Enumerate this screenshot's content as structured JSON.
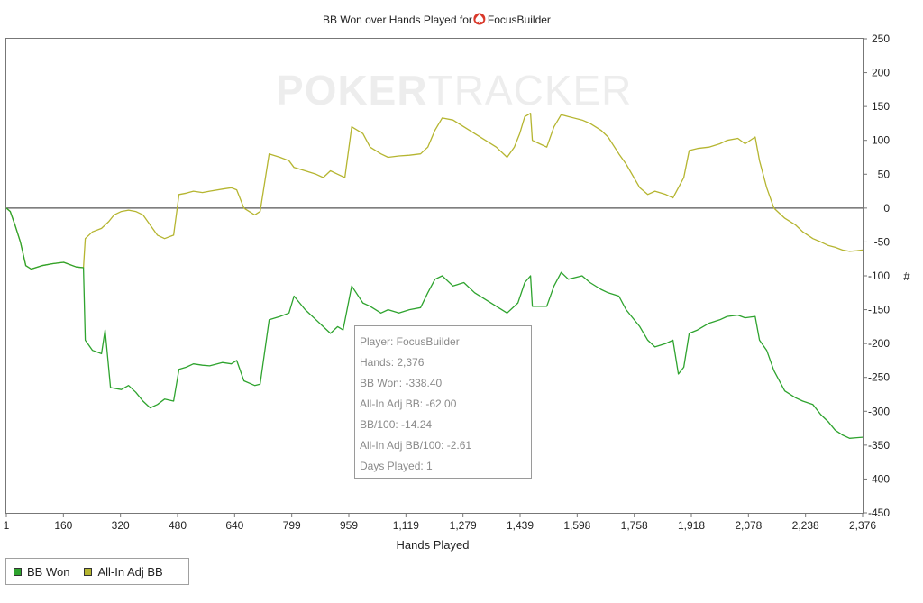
{
  "chart_data": {
    "type": "line",
    "title": "BB Won over Hands Played for",
    "player": "FocusBuilder",
    "xlabel": "Hands Played",
    "ylabel": "#",
    "xlim": [
      1,
      2376
    ],
    "ylim": [
      -450,
      250
    ],
    "x_ticks": [
      "1",
      "160",
      "320",
      "480",
      "640",
      "799",
      "959",
      "1,119",
      "1,279",
      "1,439",
      "1,598",
      "1,758",
      "1,918",
      "2,078",
      "2,238",
      "2,376"
    ],
    "y_ticks": [
      250,
      200,
      150,
      100,
      50,
      0,
      -50,
      -100,
      -150,
      -200,
      -250,
      -300,
      -350,
      -400,
      -450
    ],
    "grid": false,
    "legend_position": "bottom-left",
    "series": [
      {
        "name": "BB Won",
        "color": "#2ea32e",
        "points": [
          [
            1,
            0
          ],
          [
            12,
            -5
          ],
          [
            25,
            -25
          ],
          [
            40,
            -50
          ],
          [
            55,
            -85
          ],
          [
            70,
            -90
          ],
          [
            100,
            -85
          ],
          [
            130,
            -82
          ],
          [
            160,
            -80
          ],
          [
            195,
            -87
          ],
          [
            215,
            -88
          ],
          [
            220,
            -195
          ],
          [
            240,
            -210
          ],
          [
            265,
            -215
          ],
          [
            275,
            -180
          ],
          [
            290,
            -265
          ],
          [
            320,
            -268
          ],
          [
            340,
            -262
          ],
          [
            360,
            -272
          ],
          [
            380,
            -285
          ],
          [
            400,
            -295
          ],
          [
            420,
            -290
          ],
          [
            440,
            -282
          ],
          [
            465,
            -285
          ],
          [
            480,
            -238
          ],
          [
            500,
            -235
          ],
          [
            520,
            -230
          ],
          [
            545,
            -232
          ],
          [
            565,
            -233
          ],
          [
            600,
            -228
          ],
          [
            625,
            -230
          ],
          [
            640,
            -225
          ],
          [
            660,
            -255
          ],
          [
            690,
            -262
          ],
          [
            705,
            -260
          ],
          [
            730,
            -165
          ],
          [
            760,
            -160
          ],
          [
            785,
            -155
          ],
          [
            799,
            -130
          ],
          [
            830,
            -150
          ],
          [
            860,
            -165
          ],
          [
            880,
            -175
          ],
          [
            900,
            -185
          ],
          [
            920,
            -175
          ],
          [
            935,
            -180
          ],
          [
            959,
            -115
          ],
          [
            990,
            -140
          ],
          [
            1010,
            -145
          ],
          [
            1040,
            -155
          ],
          [
            1060,
            -150
          ],
          [
            1090,
            -155
          ],
          [
            1119,
            -150
          ],
          [
            1150,
            -147
          ],
          [
            1170,
            -125
          ],
          [
            1190,
            -105
          ],
          [
            1210,
            -100
          ],
          [
            1240,
            -115
          ],
          [
            1270,
            -110
          ],
          [
            1300,
            -125
          ],
          [
            1330,
            -135
          ],
          [
            1360,
            -145
          ],
          [
            1390,
            -155
          ],
          [
            1420,
            -140
          ],
          [
            1439,
            -110
          ],
          [
            1455,
            -100
          ],
          [
            1460,
            -145
          ],
          [
            1480,
            -145
          ],
          [
            1500,
            -145
          ],
          [
            1520,
            -115
          ],
          [
            1540,
            -95
          ],
          [
            1560,
            -105
          ],
          [
            1598,
            -100
          ],
          [
            1620,
            -110
          ],
          [
            1650,
            -120
          ],
          [
            1670,
            -125
          ],
          [
            1700,
            -130
          ],
          [
            1720,
            -150
          ],
          [
            1758,
            -175
          ],
          [
            1780,
            -195
          ],
          [
            1800,
            -205
          ],
          [
            1830,
            -200
          ],
          [
            1850,
            -195
          ],
          [
            1865,
            -245
          ],
          [
            1880,
            -235
          ],
          [
            1895,
            -185
          ],
          [
            1918,
            -180
          ],
          [
            1950,
            -170
          ],
          [
            1980,
            -165
          ],
          [
            2000,
            -160
          ],
          [
            2030,
            -158
          ],
          [
            2050,
            -162
          ],
          [
            2078,
            -160
          ],
          [
            2090,
            -195
          ],
          [
            2110,
            -210
          ],
          [
            2130,
            -240
          ],
          [
            2160,
            -270
          ],
          [
            2190,
            -280
          ],
          [
            2210,
            -285
          ],
          [
            2238,
            -290
          ],
          [
            2260,
            -305
          ],
          [
            2280,
            -315
          ],
          [
            2300,
            -328
          ],
          [
            2320,
            -335
          ],
          [
            2340,
            -340
          ],
          [
            2360,
            -339
          ],
          [
            2376,
            -338.4
          ]
        ]
      },
      {
        "name": "All-In Adj BB",
        "color": "#b5b530",
        "points": [
          [
            1,
            0
          ],
          [
            12,
            -5
          ],
          [
            25,
            -25
          ],
          [
            40,
            -50
          ],
          [
            55,
            -85
          ],
          [
            70,
            -90
          ],
          [
            100,
            -85
          ],
          [
            130,
            -82
          ],
          [
            160,
            -80
          ],
          [
            195,
            -87
          ],
          [
            215,
            -88
          ],
          [
            220,
            -45
          ],
          [
            240,
            -35
          ],
          [
            265,
            -30
          ],
          [
            285,
            -20
          ],
          [
            300,
            -10
          ],
          [
            320,
            -5
          ],
          [
            340,
            -3
          ],
          [
            360,
            -5
          ],
          [
            380,
            -10
          ],
          [
            400,
            -25
          ],
          [
            420,
            -40
          ],
          [
            440,
            -45
          ],
          [
            465,
            -40
          ],
          [
            480,
            20
          ],
          [
            500,
            22
          ],
          [
            520,
            25
          ],
          [
            545,
            23
          ],
          [
            565,
            25
          ],
          [
            600,
            28
          ],
          [
            625,
            30
          ],
          [
            640,
            27
          ],
          [
            660,
            0
          ],
          [
            690,
            -10
          ],
          [
            705,
            -5
          ],
          [
            730,
            80
          ],
          [
            760,
            75
          ],
          [
            785,
            70
          ],
          [
            799,
            60
          ],
          [
            830,
            55
          ],
          [
            860,
            50
          ],
          [
            880,
            45
          ],
          [
            900,
            55
          ],
          [
            920,
            50
          ],
          [
            940,
            45
          ],
          [
            959,
            120
          ],
          [
            990,
            110
          ],
          [
            1010,
            90
          ],
          [
            1040,
            80
          ],
          [
            1060,
            75
          ],
          [
            1090,
            77
          ],
          [
            1119,
            78
          ],
          [
            1150,
            80
          ],
          [
            1170,
            90
          ],
          [
            1190,
            115
          ],
          [
            1210,
            133
          ],
          [
            1240,
            130
          ],
          [
            1270,
            120
          ],
          [
            1300,
            110
          ],
          [
            1330,
            100
          ],
          [
            1360,
            90
          ],
          [
            1390,
            75
          ],
          [
            1410,
            90
          ],
          [
            1425,
            110
          ],
          [
            1439,
            135
          ],
          [
            1455,
            140
          ],
          [
            1460,
            100
          ],
          [
            1480,
            95
          ],
          [
            1500,
            90
          ],
          [
            1520,
            120
          ],
          [
            1540,
            138
          ],
          [
            1560,
            135
          ],
          [
            1598,
            130
          ],
          [
            1620,
            125
          ],
          [
            1650,
            115
          ],
          [
            1670,
            105
          ],
          [
            1700,
            80
          ],
          [
            1720,
            65
          ],
          [
            1758,
            30
          ],
          [
            1780,
            20
          ],
          [
            1800,
            25
          ],
          [
            1830,
            20
          ],
          [
            1850,
            15
          ],
          [
            1865,
            30
          ],
          [
            1880,
            45
          ],
          [
            1895,
            85
          ],
          [
            1918,
            88
          ],
          [
            1950,
            90
          ],
          [
            1980,
            95
          ],
          [
            2000,
            100
          ],
          [
            2030,
            103
          ],
          [
            2050,
            95
          ],
          [
            2078,
            105
          ],
          [
            2090,
            70
          ],
          [
            2110,
            30
          ],
          [
            2130,
            0
          ],
          [
            2160,
            -15
          ],
          [
            2190,
            -25
          ],
          [
            2210,
            -35
          ],
          [
            2238,
            -45
          ],
          [
            2260,
            -50
          ],
          [
            2280,
            -55
          ],
          [
            2300,
            -58
          ],
          [
            2320,
            -62
          ],
          [
            2340,
            -64
          ],
          [
            2360,
            -63
          ],
          [
            2376,
            -62
          ]
        ]
      }
    ]
  },
  "watermark": {
    "part1": "POKER",
    "part2": "TRACKER"
  },
  "legend": {
    "items": [
      {
        "label": "BB Won",
        "color": "#2ea32e"
      },
      {
        "label": "All-In Adj BB",
        "color": "#b5b530"
      }
    ]
  },
  "tooltip": {
    "player": "Player: FocusBuilder",
    "hands": "Hands: 2,376",
    "bb_won": "BB Won: -338.40",
    "all_in_adj_bb": "All-In Adj BB: -62.00",
    "bb_per_100": "BB/100: -14.24",
    "all_in_adj_bb_per_100": "All-In Adj BB/100: -2.61",
    "days_played": "Days Played: 1"
  }
}
